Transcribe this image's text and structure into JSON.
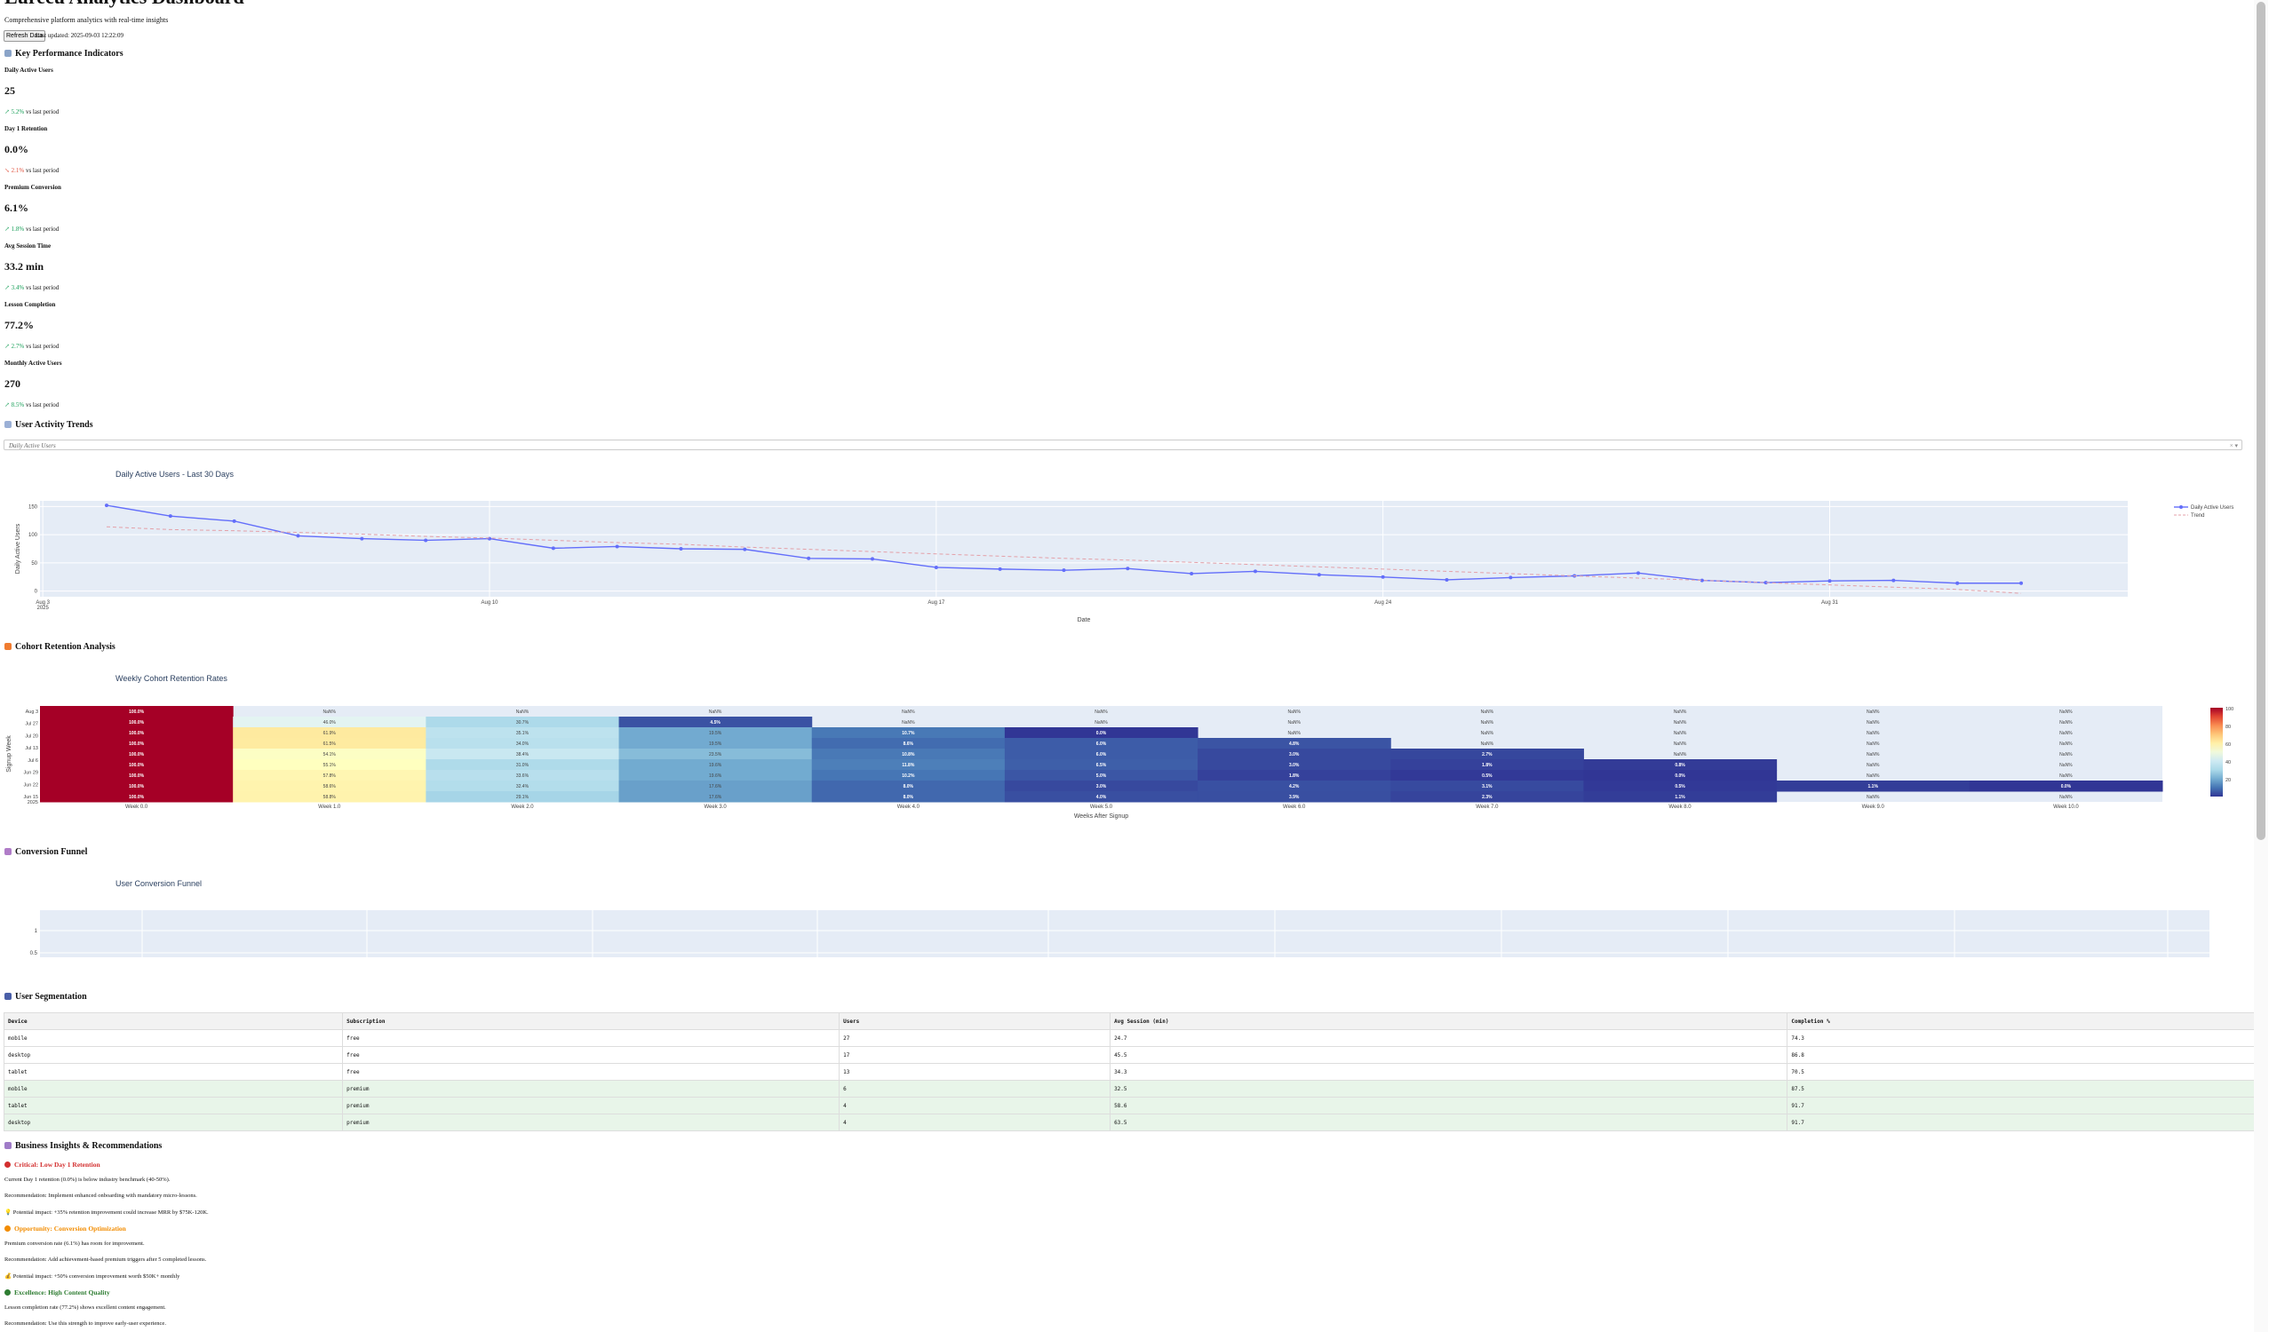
{
  "header": {
    "title": "Lurecu Analytics Dashboard",
    "subtitle": "Comprehensive platform analytics with real-time insights",
    "refresh_label": "Refresh Data",
    "last_updated": "Last updated: 2025-09-03 12:22:09"
  },
  "kpi_section": {
    "title": "Key Performance Indicators",
    "icon": "bar-chart-icon",
    "items": [
      {
        "label": "Daily Active Users",
        "value": "25",
        "change": "↗ 5.2%",
        "suffix": " vs last period",
        "direction": "up"
      },
      {
        "label": "Day 1 Retention",
        "value": "0.0%",
        "change": "↘ 2.1%",
        "suffix": " vs last period",
        "direction": "down"
      },
      {
        "label": "Premium Conversion",
        "value": "6.1%",
        "change": "↗ 1.8%",
        "suffix": " vs last period",
        "direction": "up"
      },
      {
        "label": "Avg Session Time",
        "value": "33.2 min",
        "change": "↗ 3.4%",
        "suffix": " vs last period",
        "direction": "up"
      },
      {
        "label": "Lesson Completion",
        "value": "77.2%",
        "change": "↗ 2.7%",
        "suffix": " vs last period",
        "direction": "up"
      },
      {
        "label": "Monthly Active Users",
        "value": "270",
        "change": "↗ 8.5%",
        "suffix": " vs last period",
        "direction": "up"
      }
    ]
  },
  "activity_section": {
    "title": "User Activity Trends",
    "icon": "trend-chart-icon",
    "dropdown_value": "Daily Active Users",
    "dropdown_controls": "× ▾"
  },
  "cohort_section": {
    "title": "Cohort Retention Analysis",
    "icon": "fire-icon"
  },
  "funnel_section": {
    "title": "Conversion Funnel",
    "icon": "funnel-icon"
  },
  "segmentation_section": {
    "title": "User Segmentation",
    "icon": "people-icon",
    "columns": [
      "Device",
      "Subscription",
      "Users",
      "Avg Session (min)",
      "Completion %"
    ],
    "rows": [
      [
        "mobile",
        "free",
        "27",
        "24.7",
        "74.3"
      ],
      [
        "desktop",
        "free",
        "17",
        "45.5",
        "86.8"
      ],
      [
        "tablet",
        "free",
        "13",
        "34.3",
        "70.5"
      ],
      [
        "mobile",
        "premium",
        "6",
        "32.5",
        "87.5"
      ],
      [
        "tablet",
        "premium",
        "4",
        "58.6",
        "91.7"
      ],
      [
        "desktop",
        "premium",
        "4",
        "63.5",
        "91.7"
      ]
    ]
  },
  "insights_section": {
    "title": "Business Insights & Recommendations",
    "icon": "lightbulb-icon",
    "items": [
      {
        "heading": "Critical: Low Day 1 Retention",
        "icon": "red-circle-icon",
        "color": "#d32f2f",
        "lines": [
          "Current Day 1 retention (0.0%) is below industry benchmark (40-50%).",
          "Recommendation: Implement enhanced onboarding with mandatory micro-lessons.",
          "💡 Potential impact: +35% retention improvement could increase MRR by $75K-120K."
        ]
      },
      {
        "heading": "Opportunity: Conversion Optimization",
        "icon": "orange-circle-icon",
        "color": "#f28c00",
        "lines": [
          "Premium conversion rate (6.1%) has room for improvement.",
          "Recommendation: Add achievement-based premium triggers after 5 completed lessons.",
          "💰 Potential impact: +50% conversion improvement worth $50K+ monthly"
        ]
      },
      {
        "heading": "Excellence: High Content Quality",
        "icon": "trophy-icon",
        "color": "#2e7d32",
        "lines": [
          "Lesson completion rate (77.2%) shows excellent content engagement.",
          "Recommendation: Use this strength to improve early-user experience."
        ]
      }
    ]
  },
  "chart_data": [
    {
      "type": "line",
      "title": "Daily Active Users - Last 30 Days",
      "xlabel": "Date",
      "ylabel": "Daily Active Users",
      "x_tick_labels": [
        "Aug 3\n2025",
        "Aug 10",
        "Aug 17",
        "Aug 24",
        "Aug 31"
      ],
      "y_tick_labels": [
        "0",
        "50",
        "100",
        "150"
      ],
      "ylim": [
        -10,
        160
      ],
      "x": [
        "2025-08-04",
        "2025-08-05",
        "2025-08-06",
        "2025-08-07",
        "2025-08-08",
        "2025-08-09",
        "2025-08-10",
        "2025-08-11",
        "2025-08-12",
        "2025-08-13",
        "2025-08-14",
        "2025-08-15",
        "2025-08-16",
        "2025-08-17",
        "2025-08-18",
        "2025-08-19",
        "2025-08-20",
        "2025-08-21",
        "2025-08-22",
        "2025-08-23",
        "2025-08-24",
        "2025-08-25",
        "2025-08-26",
        "2025-08-27",
        "2025-08-28",
        "2025-08-29",
        "2025-08-30",
        "2025-08-31",
        "2025-09-01",
        "2025-09-02",
        "2025-09-03"
      ],
      "series": [
        {
          "name": "Daily Active Users",
          "color": "#636efa",
          "values": [
            152,
            133,
            124,
            98,
            93,
            90,
            93,
            76,
            79,
            75,
            74,
            58,
            57,
            42,
            39,
            37,
            40,
            31,
            35,
            29,
            25,
            20,
            24,
            27,
            32,
            19,
            15,
            18,
            19,
            14,
            14
          ]
        },
        {
          "name": "Trend",
          "color": "#e4a0a8",
          "dash": true,
          "values": [
            114,
            109,
            107,
            104,
            101,
            97,
            94,
            90,
            86,
            83,
            78,
            74,
            70,
            66,
            62,
            58,
            55,
            51,
            47,
            43,
            39,
            35,
            31,
            27,
            23,
            19,
            15,
            11,
            7,
            3,
            -4
          ]
        }
      ],
      "legend_position": "top-right"
    },
    {
      "type": "heatmap",
      "title": "Weekly Cohort Retention Rates",
      "xlabel": "Weeks After Signup",
      "ylabel": "Signup Week",
      "x_tick_labels": [
        "Week 0.0",
        "Week 1.0",
        "Week 2.0",
        "Week 3.0",
        "Week 4.0",
        "Week 5.0",
        "Week 6.0",
        "Week 7.0",
        "Week 8.0",
        "Week 9.0",
        "Week 10.0"
      ],
      "y_tick_labels": [
        "Aug 3",
        "Jul 27",
        "Jul 20",
        "Jul 13",
        "Jul 6",
        "Jun 29",
        "Jun 22",
        "Jun 15\n2025"
      ],
      "colorbar_ticks": [
        "100",
        "80",
        "60",
        "40",
        "20"
      ],
      "rows": [
        [
          100,
          null,
          null,
          null,
          null,
          null,
          null,
          null,
          null,
          null,
          null
        ],
        [
          100,
          46.0,
          30.7,
          4.5,
          null,
          null,
          null,
          null,
          null,
          null,
          null
        ],
        [
          100,
          61.9,
          35.1,
          19.5,
          10.7,
          0.0,
          null,
          null,
          null,
          null,
          null
        ],
        [
          100,
          61.5,
          34.0,
          19.5,
          8.6,
          6.0,
          4.8,
          null,
          null,
          null,
          null
        ],
        [
          100,
          54.1,
          38.4,
          23.5,
          10.8,
          6.0,
          3.0,
          2.7,
          null,
          null,
          null
        ],
        [
          100,
          55.1,
          31.0,
          19.6,
          11.8,
          6.5,
          3.0,
          1.8,
          0.8,
          null,
          null
        ],
        [
          100,
          57.8,
          33.6,
          19.6,
          10.2,
          5.0,
          1.8,
          0.5,
          0.0,
          null,
          null
        ],
        [
          100,
          58.6,
          32.4,
          17.6,
          8.0,
          3.0,
          4.2,
          3.1,
          0.5,
          1.1,
          0.0
        ],
        [
          100,
          58.8,
          29.1,
          17.6,
          8.0,
          4.0,
          3.9,
          2.3,
          1.1,
          null,
          null
        ]
      ],
      "missing_label": "NaN%"
    },
    {
      "type": "bar",
      "title": "User Conversion Funnel",
      "y_tick_labels": [
        "1",
        "0.5"
      ],
      "categories": [],
      "values": []
    }
  ]
}
